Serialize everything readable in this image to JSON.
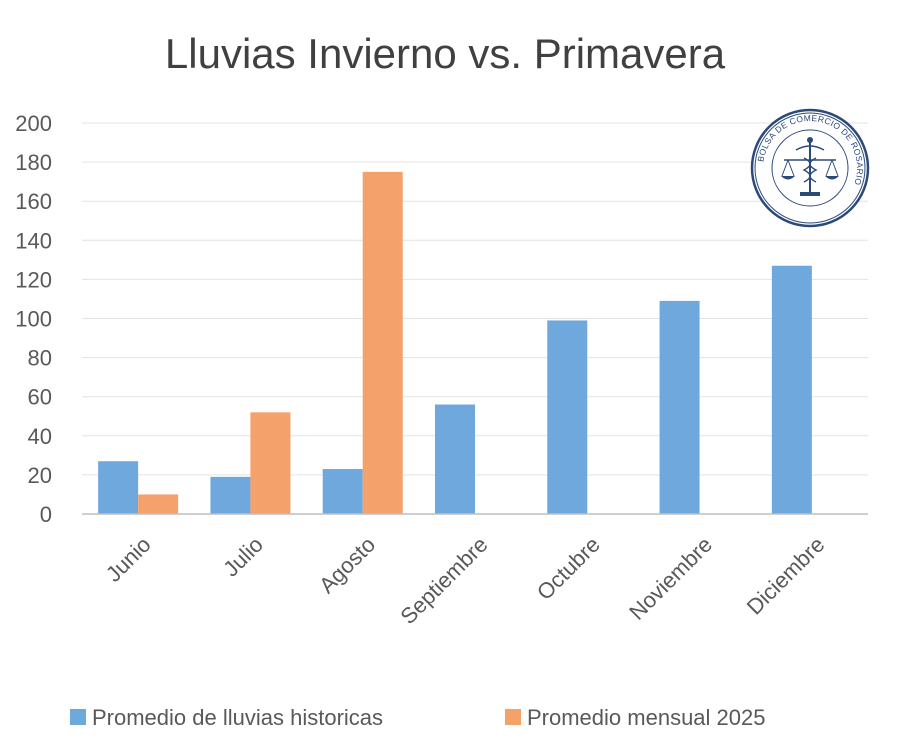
{
  "chart_data": {
    "type": "bar",
    "title": "Lluvias Invierno vs. Primavera",
    "categories": [
      "Junio",
      "Julio",
      "Agosto",
      "Septiembre",
      "Octubre",
      "Noviembre",
      "Diciembre"
    ],
    "series": [
      {
        "name": "Promedio de lluvias historicas",
        "color": "#6fa8dc",
        "values": [
          27,
          19,
          23,
          56,
          99,
          109,
          127
        ]
      },
      {
        "name": "Promedio mensual 2025",
        "color": "#f4a16b",
        "values": [
          10,
          52,
          175,
          null,
          null,
          null,
          null
        ]
      }
    ],
    "yticks": [
      0,
      20,
      40,
      60,
      80,
      100,
      120,
      140,
      160,
      180,
      200
    ],
    "ylim": [
      0,
      200
    ],
    "xlabel": "",
    "ylabel": "",
    "grid": true,
    "legend_position": "bottom"
  },
  "logo": {
    "text": "BOLSA DE COMERCIO DE ROSARIO",
    "icon": "scales-of-justice-seal-icon"
  },
  "colors": {
    "gridline": "#e3e3e3",
    "axis": "#bfbfbf",
    "text": "#595959",
    "seal": "#2b4a7a"
  }
}
